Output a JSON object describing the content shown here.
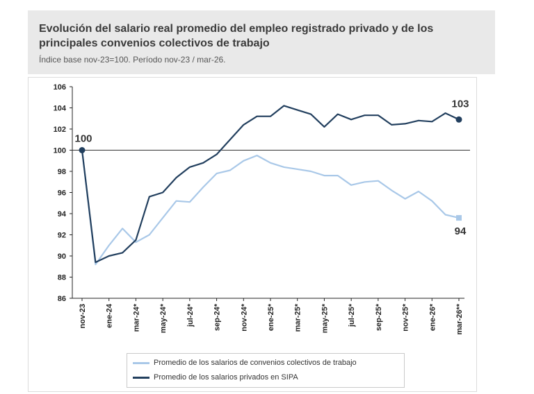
{
  "header": {
    "title": "Evolución del salario real promedio del empleo registrado privado y de los principales convenios colectivos de trabajo",
    "subtitle": "Índice base nov-23=100. Período nov-23 / mar-26."
  },
  "colors": {
    "private": "#223f5e",
    "agreements": "#a9c8e8",
    "axis": "#222222",
    "header_bg": "#e9e9e9"
  },
  "chart_data": {
    "type": "line",
    "x": [
      "nov-23",
      "dic-23",
      "ene-24",
      "feb-24",
      "mar-24*",
      "abr-24*",
      "may-24*",
      "jun-24*",
      "jul-24*",
      "ago-24*",
      "sep-24*",
      "oct-24*",
      "nov-24*",
      "dic-24*",
      "ene-25*",
      "feb-25*",
      "mar-25*",
      "abr-25*",
      "may-25*",
      "jun-25*",
      "jul-25*",
      "ago-25*",
      "sep-25*",
      "oct-25*",
      "nov-25*",
      "dic-25*",
      "ene-26*",
      "feb-26*",
      "mar-26**"
    ],
    "tick_labels": [
      "nov-23",
      "ene-24",
      "mar-24*",
      "may-24*",
      "jul-24*",
      "sep-24*",
      "nov-24*",
      "ene-25*",
      "mar-25*",
      "may-25*",
      "jul-25*",
      "sep-25*",
      "nov-25*",
      "ene-26*",
      "mar-26**"
    ],
    "ylim": [
      86,
      106
    ],
    "yticks": [
      86,
      88,
      90,
      92,
      94,
      96,
      98,
      100,
      102,
      104,
      106
    ],
    "reference_line": 100,
    "series": [
      {
        "name": "Promedio de los salarios de convenios colectivos de trabajo",
        "key": "agreements",
        "values": [
          100,
          89.2,
          91.0,
          92.6,
          91.3,
          92.0,
          93.6,
          95.2,
          95.1,
          96.5,
          97.8,
          98.1,
          99.0,
          99.5,
          98.8,
          98.4,
          98.2,
          98.0,
          97.6,
          97.6,
          96.7,
          97.0,
          97.1,
          96.2,
          95.4,
          96.1,
          95.2,
          93.9,
          93.6
        ]
      },
      {
        "name": "Promedio de los salarios privados en SIPA",
        "key": "private",
        "values": [
          100,
          89.4,
          90.0,
          90.3,
          91.5,
          95.6,
          96.0,
          97.4,
          98.4,
          98.8,
          99.6,
          101.0,
          102.4,
          103.2,
          103.2,
          104.2,
          103.8,
          103.4,
          102.2,
          103.4,
          102.9,
          103.3,
          103.3,
          102.4,
          102.5,
          102.8,
          102.7,
          103.5,
          102.9
        ]
      }
    ],
    "annotations": {
      "start": "100",
      "private_end": "103",
      "agreements_end": "94"
    }
  }
}
